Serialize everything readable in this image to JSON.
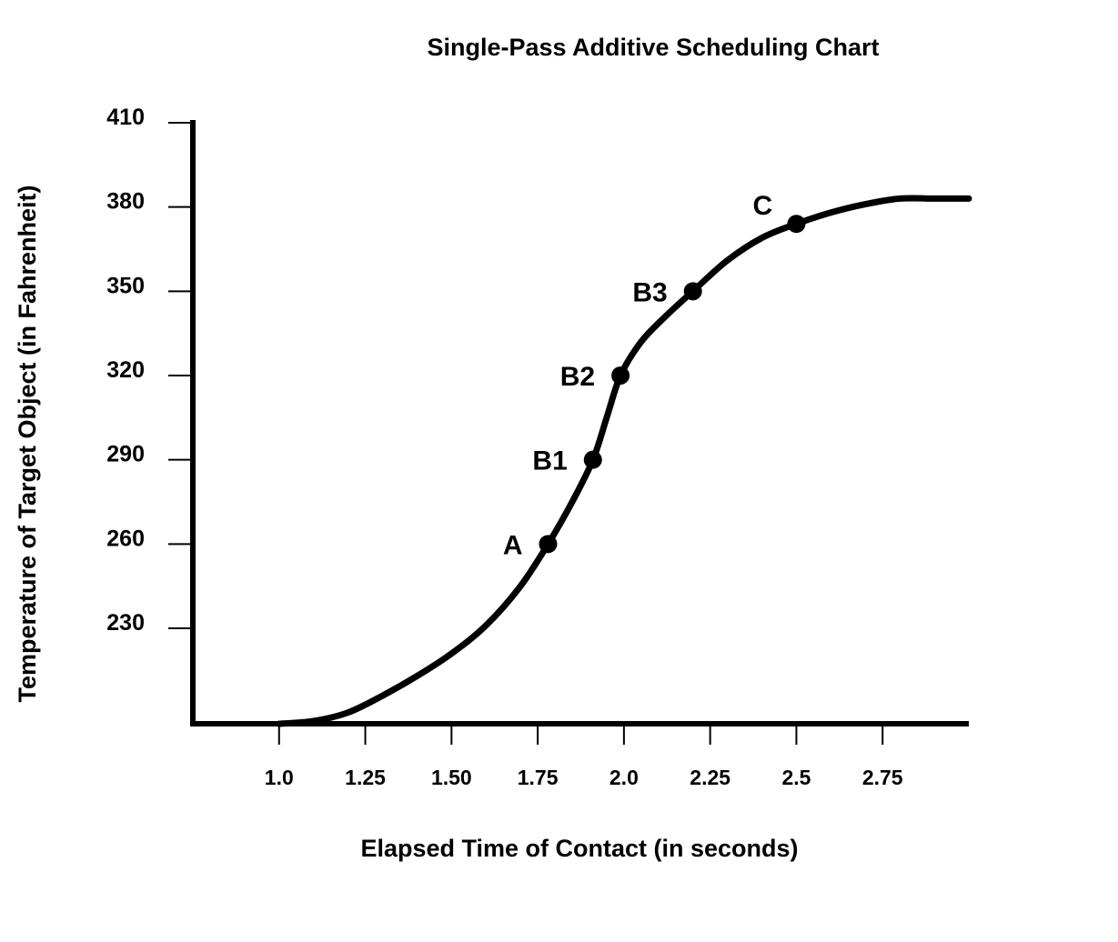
{
  "chart_data": {
    "type": "line",
    "title": "Single-Pass Additive Scheduling Chart",
    "xlabel": "Elapsed Time of Contact (in seconds)",
    "ylabel": "Temperature of Target Object (in Fahrenheit)",
    "x_ticks": [
      {
        "value": 1.0,
        "label": "1.0"
      },
      {
        "value": 1.25,
        "label": "1.25"
      },
      {
        "value": 1.5,
        "label": "1.50"
      },
      {
        "value": 1.75,
        "label": "1.75"
      },
      {
        "value": 2.0,
        "label": "2.0"
      },
      {
        "value": 2.25,
        "label": "2.25"
      },
      {
        "value": 2.5,
        "label": "2.5"
      },
      {
        "value": 2.75,
        "label": "2.75"
      }
    ],
    "y_ticks": [
      {
        "value": 230,
        "label": "230"
      },
      {
        "value": 260,
        "label": "260"
      },
      {
        "value": 290,
        "label": "290"
      },
      {
        "value": 320,
        "label": "320"
      },
      {
        "value": 350,
        "label": "350"
      },
      {
        "value": 380,
        "label": "380"
      },
      {
        "value": 410,
        "label": "410"
      }
    ],
    "xlim": [
      0.75,
      3.0
    ],
    "ylim": [
      196,
      410
    ],
    "grid": false,
    "legend": "none",
    "curve": {
      "x": [
        1.0,
        1.1,
        1.2,
        1.3,
        1.4,
        1.5,
        1.6,
        1.7,
        1.78,
        1.85,
        1.91,
        1.95,
        1.99,
        2.05,
        2.12,
        2.2,
        2.3,
        2.4,
        2.5,
        2.6,
        2.7,
        2.8,
        2.9,
        3.0
      ],
      "y": [
        196,
        197,
        200,
        206,
        213,
        221,
        231,
        245,
        260,
        275,
        290,
        305,
        320,
        332,
        341,
        350,
        361,
        369,
        374,
        378,
        381,
        383,
        383,
        383
      ]
    },
    "points": [
      {
        "label": "A",
        "x": 1.78,
        "y": 260
      },
      {
        "label": "B1",
        "x": 1.91,
        "y": 290
      },
      {
        "label": "B2",
        "x": 1.99,
        "y": 320
      },
      {
        "label": "B3",
        "x": 2.2,
        "y": 350
      },
      {
        "label": "C",
        "x": 2.5,
        "y": 374
      }
    ]
  }
}
